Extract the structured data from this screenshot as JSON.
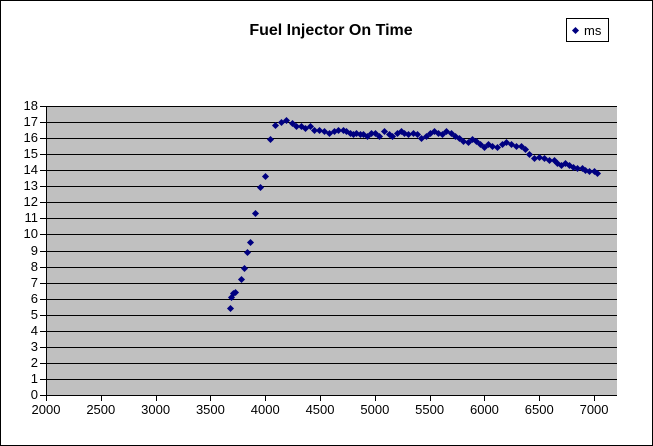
{
  "chart_data": {
    "type": "scatter",
    "title": "Fuel Injector On Time",
    "xlabel": "",
    "ylabel": "",
    "xlim": [
      2000,
      7200
    ],
    "ylim": [
      0,
      18
    ],
    "x_ticks": [
      2000,
      2500,
      3000,
      3500,
      4000,
      4500,
      5000,
      5500,
      6000,
      6500,
      7000
    ],
    "y_ticks": [
      0,
      1,
      2,
      3,
      4,
      5,
      6,
      7,
      8,
      9,
      10,
      11,
      12,
      13,
      14,
      15,
      16,
      17,
      18
    ],
    "grid": "horizontal",
    "legend_position": "top-right",
    "plot_bg_color": "#C0C0C0",
    "grid_color": "#000000",
    "marker_shape": "diamond",
    "marker_color": "#000080",
    "series": [
      {
        "name": "ms",
        "points": [
          [
            3682,
            5.4
          ],
          [
            3690,
            6.1
          ],
          [
            3706,
            6.3
          ],
          [
            3730,
            6.4
          ],
          [
            3782,
            7.2
          ],
          [
            3810,
            7.9
          ],
          [
            3840,
            8.9
          ],
          [
            3865,
            9.5
          ],
          [
            3910,
            11.3
          ],
          [
            3955,
            12.9
          ],
          [
            4005,
            13.6
          ],
          [
            4052,
            15.9
          ],
          [
            4090,
            16.8
          ],
          [
            4145,
            17.0
          ],
          [
            4195,
            17.1
          ],
          [
            4245,
            16.9
          ],
          [
            4285,
            16.7
          ],
          [
            4330,
            16.7
          ],
          [
            4370,
            16.6
          ],
          [
            4410,
            16.7
          ],
          [
            4450,
            16.5
          ],
          [
            4495,
            16.5
          ],
          [
            4540,
            16.4
          ],
          [
            4585,
            16.3
          ],
          [
            4630,
            16.4
          ],
          [
            4670,
            16.5
          ],
          [
            4710,
            16.5
          ],
          [
            4745,
            16.4
          ],
          [
            4775,
            16.3
          ],
          [
            4805,
            16.2
          ],
          [
            4835,
            16.3
          ],
          [
            4865,
            16.2
          ],
          [
            4895,
            16.2
          ],
          [
            4930,
            16.1
          ],
          [
            4970,
            16.3
          ],
          [
            5010,
            16.3
          ],
          [
            5045,
            16.1
          ],
          [
            5090,
            16.4
          ],
          [
            5130,
            16.2
          ],
          [
            5165,
            16.1
          ],
          [
            5205,
            16.3
          ],
          [
            5240,
            16.4
          ],
          [
            5275,
            16.3
          ],
          [
            5310,
            16.2
          ],
          [
            5350,
            16.3
          ],
          [
            5385,
            16.2
          ],
          [
            5425,
            16.0
          ],
          [
            5470,
            16.1
          ],
          [
            5505,
            16.3
          ],
          [
            5545,
            16.4
          ],
          [
            5585,
            16.3
          ],
          [
            5620,
            16.2
          ],
          [
            5655,
            16.4
          ],
          [
            5695,
            16.3
          ],
          [
            5735,
            16.1
          ],
          [
            5775,
            16.0
          ],
          [
            5810,
            15.8
          ],
          [
            5850,
            15.7
          ],
          [
            5890,
            15.9
          ],
          [
            5925,
            15.8
          ],
          [
            5965,
            15.6
          ],
          [
            6000,
            15.4
          ],
          [
            6040,
            15.6
          ],
          [
            6075,
            15.5
          ],
          [
            6120,
            15.4
          ],
          [
            6165,
            15.6
          ],
          [
            6200,
            15.7
          ],
          [
            6250,
            15.6
          ],
          [
            6295,
            15.5
          ],
          [
            6340,
            15.5
          ],
          [
            6370,
            15.3
          ],
          [
            6415,
            15.0
          ],
          [
            6460,
            14.7
          ],
          [
            6505,
            14.8
          ],
          [
            6550,
            14.7
          ],
          [
            6595,
            14.6
          ],
          [
            6640,
            14.6
          ],
          [
            6670,
            14.4
          ],
          [
            6700,
            14.3
          ],
          [
            6735,
            14.4
          ],
          [
            6775,
            14.3
          ],
          [
            6810,
            14.2
          ],
          [
            6850,
            14.1
          ],
          [
            6890,
            14.1
          ],
          [
            6925,
            14.0
          ],
          [
            6960,
            13.9
          ],
          [
            7000,
            13.9
          ],
          [
            7030,
            13.8
          ]
        ]
      }
    ]
  }
}
